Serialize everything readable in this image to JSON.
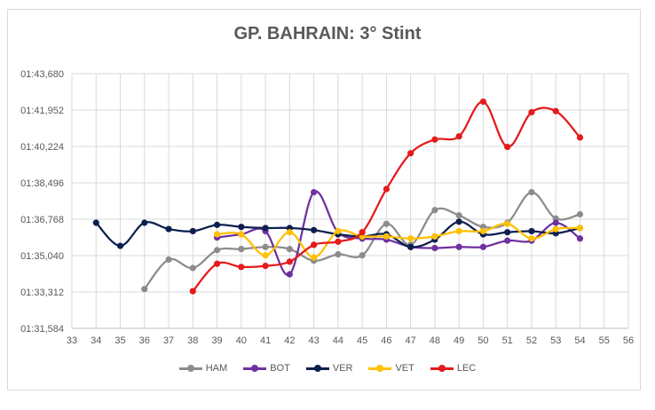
{
  "chart_data": {
    "type": "line",
    "title": "GP. BAHRAIN: 3° Stint",
    "xlabel": "",
    "ylabel": "",
    "xlim": [
      33,
      56
    ],
    "ylim": [
      91.584,
      103.68
    ],
    "x_ticks": [
      "33",
      "34",
      "35",
      "36",
      "37",
      "38",
      "39",
      "40",
      "41",
      "42",
      "43",
      "44",
      "45",
      "46",
      "47",
      "48",
      "49",
      "50",
      "51",
      "52",
      "53",
      "54",
      "55",
      "56"
    ],
    "y_ticks": [
      {
        "v": 91.584,
        "label": "01:31,584"
      },
      {
        "v": 93.312,
        "label": "01:33,312"
      },
      {
        "v": 95.04,
        "label": "01:35,040"
      },
      {
        "v": 96.768,
        "label": "01:36,768"
      },
      {
        "v": 98.496,
        "label": "01:38,496"
      },
      {
        "v": 100.224,
        "label": "01:40,224"
      },
      {
        "v": 101.952,
        "label": "01:41,952"
      },
      {
        "v": 103.68,
        "label": "01:43,680"
      }
    ],
    "grid": true,
    "legend_position": "bottom",
    "series": [
      {
        "name": "HAM",
        "color": "#8c8c8c",
        "x": [
          36,
          37,
          38,
          39,
          40,
          41,
          42,
          43,
          44,
          45,
          46,
          47,
          48,
          49,
          50,
          51,
          52,
          53,
          54
        ],
        "y": [
          93.45,
          94.85,
          94.45,
          95.3,
          95.35,
          95.45,
          95.35,
          94.8,
          95.1,
          95.05,
          96.55,
          95.55,
          97.2,
          96.95,
          96.4,
          96.6,
          98.05,
          96.8,
          97.0
        ]
      },
      {
        "name": "BOT",
        "color": "#7030a0",
        "x": [
          39,
          40,
          41,
          42,
          43,
          44,
          45,
          46,
          47,
          48,
          49,
          50,
          51,
          52,
          53,
          54
        ],
        "y": [
          95.9,
          96.05,
          96.2,
          94.15,
          98.05,
          96.15,
          95.85,
          95.8,
          95.45,
          95.4,
          95.45,
          95.45,
          95.75,
          95.75,
          96.6,
          95.85
        ]
      },
      {
        "name": "VER",
        "color": "#0d1f4e",
        "x": [
          34,
          35,
          36,
          37,
          38,
          39,
          40,
          41,
          42,
          43,
          44,
          45,
          46,
          47,
          48,
          49,
          50,
          51,
          52,
          53,
          54
        ],
        "y": [
          96.6,
          95.5,
          96.6,
          96.3,
          96.2,
          96.5,
          96.4,
          96.35,
          96.35,
          96.25,
          96.05,
          95.95,
          96.05,
          95.45,
          95.8,
          96.65,
          96.05,
          96.15,
          96.2,
          96.1,
          96.35
        ]
      },
      {
        "name": "VET",
        "color": "#ffc000",
        "x": [
          39,
          40,
          41,
          42,
          43,
          44,
          45,
          46,
          47,
          48,
          49,
          50,
          51,
          52,
          53,
          54
        ],
        "y": [
          96.05,
          96.05,
          95.05,
          96.15,
          94.95,
          96.2,
          95.95,
          95.95,
          95.85,
          95.95,
          96.2,
          96.2,
          96.55,
          95.85,
          96.3,
          96.35
        ]
      },
      {
        "name": "LEC",
        "color": "#e41a1c",
        "x": [
          38,
          39,
          40,
          41,
          42,
          43,
          44,
          45,
          46,
          47,
          48,
          49,
          50,
          51,
          52,
          53,
          54
        ],
        "y": [
          93.35,
          94.65,
          94.5,
          94.55,
          94.75,
          95.55,
          95.7,
          96.15,
          98.2,
          99.9,
          100.55,
          100.7,
          102.35,
          100.2,
          101.85,
          101.9,
          100.65
        ]
      }
    ]
  }
}
